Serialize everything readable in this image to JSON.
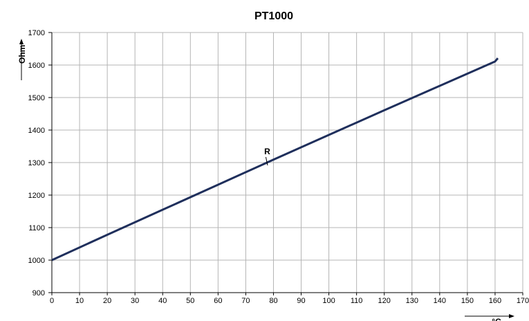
{
  "chart_data": {
    "type": "line",
    "title": "PT1000",
    "xlabel": "°C",
    "ylabel": "Ohm",
    "xlim": [
      0,
      170
    ],
    "ylim": [
      900,
      1700
    ],
    "x_ticks": [
      0,
      10,
      20,
      30,
      40,
      50,
      60,
      70,
      80,
      90,
      100,
      110,
      120,
      130,
      140,
      150,
      160,
      170
    ],
    "y_ticks": [
      900,
      1000,
      1100,
      1200,
      1300,
      1400,
      1500,
      1600,
      1700
    ],
    "x_tick_labels": [
      "0",
      "10",
      "20",
      "30",
      "40",
      "50",
      "60",
      "70",
      "80",
      "90",
      "100",
      "110",
      "120",
      "130",
      "140",
      "150",
      "160",
      "170"
    ],
    "y_tick_labels": [
      "900",
      "1000",
      "1100",
      "1200",
      "1300",
      "1400",
      "1500",
      "1600",
      "1700"
    ],
    "grid": true,
    "series": [
      {
        "name": "R",
        "color": "#1f2f5c",
        "x": [
          0,
          20,
          40,
          60,
          80,
          100,
          120,
          140,
          160,
          161
        ],
        "y": [
          1000,
          1078,
          1155,
          1232,
          1309,
          1385,
          1461,
          1536,
          1611,
          1621
        ]
      }
    ],
    "annotations": [
      {
        "text": "R",
        "x": 78,
        "y": 1300
      }
    ]
  },
  "colors": {
    "grid": "#b4b4b4",
    "axis": "#000000",
    "line": "#1f2f5c",
    "background": "#ffffff"
  }
}
